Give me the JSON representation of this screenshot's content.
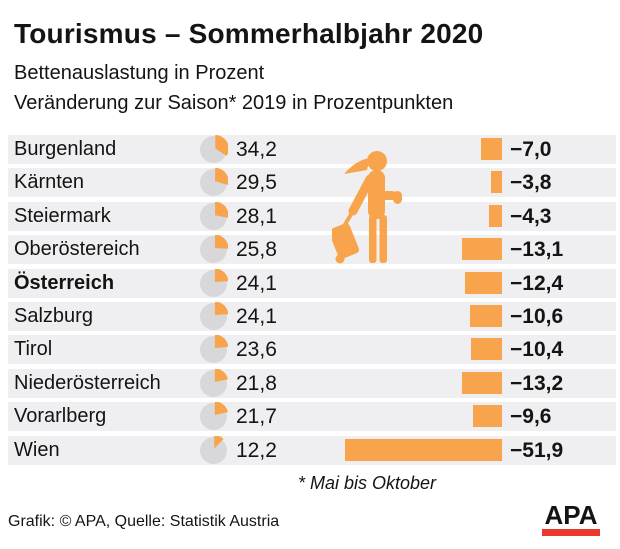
{
  "header": {
    "title": "Tourismus – Sommerhalbjahr 2020",
    "subtitle1": "Bettenauslastung in Prozent",
    "subtitle2": "Veränderung zur Saison* 2019 in Prozentpunkten"
  },
  "chart_data": {
    "type": "table",
    "title": "Tourismus – Sommerhalbjahr 2020",
    "categories": [
      "Burgenland",
      "Kärnten",
      "Steiermark",
      "Oberöstereich",
      "Österreich",
      "Salzburg",
      "Tirol",
      "Niederösterreich",
      "Vorarlberg",
      "Wien"
    ],
    "bold_category": "Österreich",
    "series": [
      {
        "name": "Bettenauslastung in Prozent",
        "visual": "pie",
        "values": [
          34.2,
          29.5,
          28.1,
          25.8,
          24.1,
          24.1,
          23.6,
          21.8,
          21.7,
          12.2
        ],
        "display": [
          "34,2",
          "29,5",
          "28,1",
          "25,8",
          "24,1",
          "24,1",
          "23,6",
          "21,8",
          "21,7",
          "12,2"
        ]
      },
      {
        "name": "Veränderung zur Saison* 2019 in Prozentpunkten",
        "visual": "bar",
        "values": [
          -7.0,
          -3.8,
          -4.3,
          -13.1,
          -12.4,
          -10.6,
          -10.4,
          -13.2,
          -9.6,
          -51.9
        ],
        "display": [
          "−7,0",
          "−3,8",
          "−4,3",
          "−13,1",
          "−12,4",
          "−10,6",
          "−10,4",
          "−13,2",
          "−9,6",
          "−51,9"
        ]
      }
    ],
    "legend_position": "none",
    "grid": false
  },
  "icons": {
    "traveler": "woman-pulling-suitcase",
    "pie": "pie-chart-wedge"
  },
  "footnote": "* Mai bis Oktober",
  "footer": {
    "credit": "Grafik: © APA, Quelle: Statistik Austria",
    "logo_text": "APA"
  },
  "colors": {
    "accent_orange": "#F7A44C",
    "pie_gray": "#D8D8DA",
    "row_band": "#EFEFF1",
    "logo_red": "#E8392C",
    "text": "#141414"
  }
}
